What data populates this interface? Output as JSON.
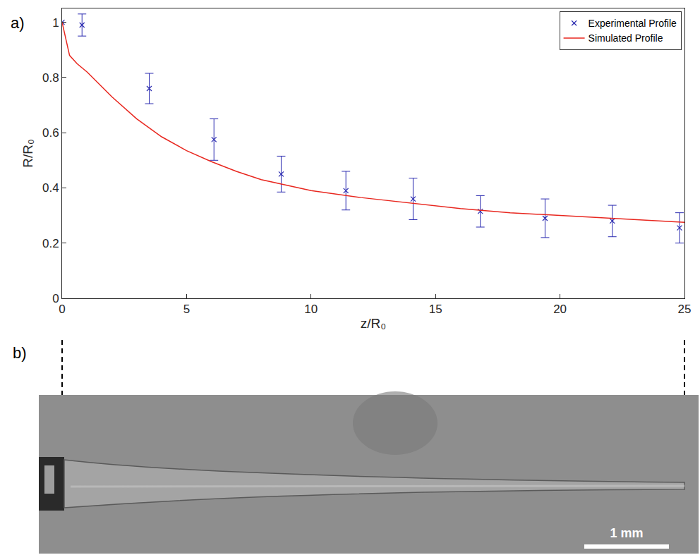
{
  "chart_data": {
    "type": "scatter",
    "x_label": "z/R₀",
    "y_label": "R/R₀",
    "xlim": [
      0,
      25
    ],
    "ylim": [
      0,
      1.05
    ],
    "xticks": [
      0,
      5,
      10,
      15,
      20,
      25
    ],
    "yticks": [
      0,
      0.2,
      0.4,
      0.6,
      0.8,
      1
    ],
    "grid": false,
    "legend": "upper right",
    "panel_labels": [
      "a)",
      "b)"
    ],
    "scale_bar_label": "1 mm",
    "series": [
      {
        "name": "Experimental Profile",
        "type": "scatter",
        "color": "#2b2bb0",
        "marker": "x",
        "x": [
          0,
          0.8,
          3.5,
          6.1,
          8.8,
          11.4,
          14.1,
          16.8,
          19.4,
          22.1,
          24.8
        ],
        "values": [
          1.0,
          0.99,
          0.76,
          0.575,
          0.45,
          0.39,
          0.36,
          0.315,
          0.29,
          0.28,
          0.255
        ],
        "error": [
          0,
          0.04,
          0.055,
          0.075,
          0.065,
          0.07,
          0.075,
          0.057,
          0.07,
          0.057,
          0.055
        ]
      },
      {
        "name": "Simulated Profile",
        "type": "line",
        "color": "#e8271f",
        "line_style": "solid",
        "x": [
          0,
          0.3,
          0.6,
          1,
          2,
          3,
          4,
          5,
          6,
          7,
          8,
          9,
          10,
          12,
          14,
          16,
          18,
          20,
          22,
          25
        ],
        "values": [
          1.0,
          0.88,
          0.85,
          0.82,
          0.73,
          0.65,
          0.585,
          0.535,
          0.495,
          0.46,
          0.43,
          0.41,
          0.39,
          0.365,
          0.345,
          0.325,
          0.31,
          0.3,
          0.29,
          0.275
        ]
      }
    ]
  }
}
